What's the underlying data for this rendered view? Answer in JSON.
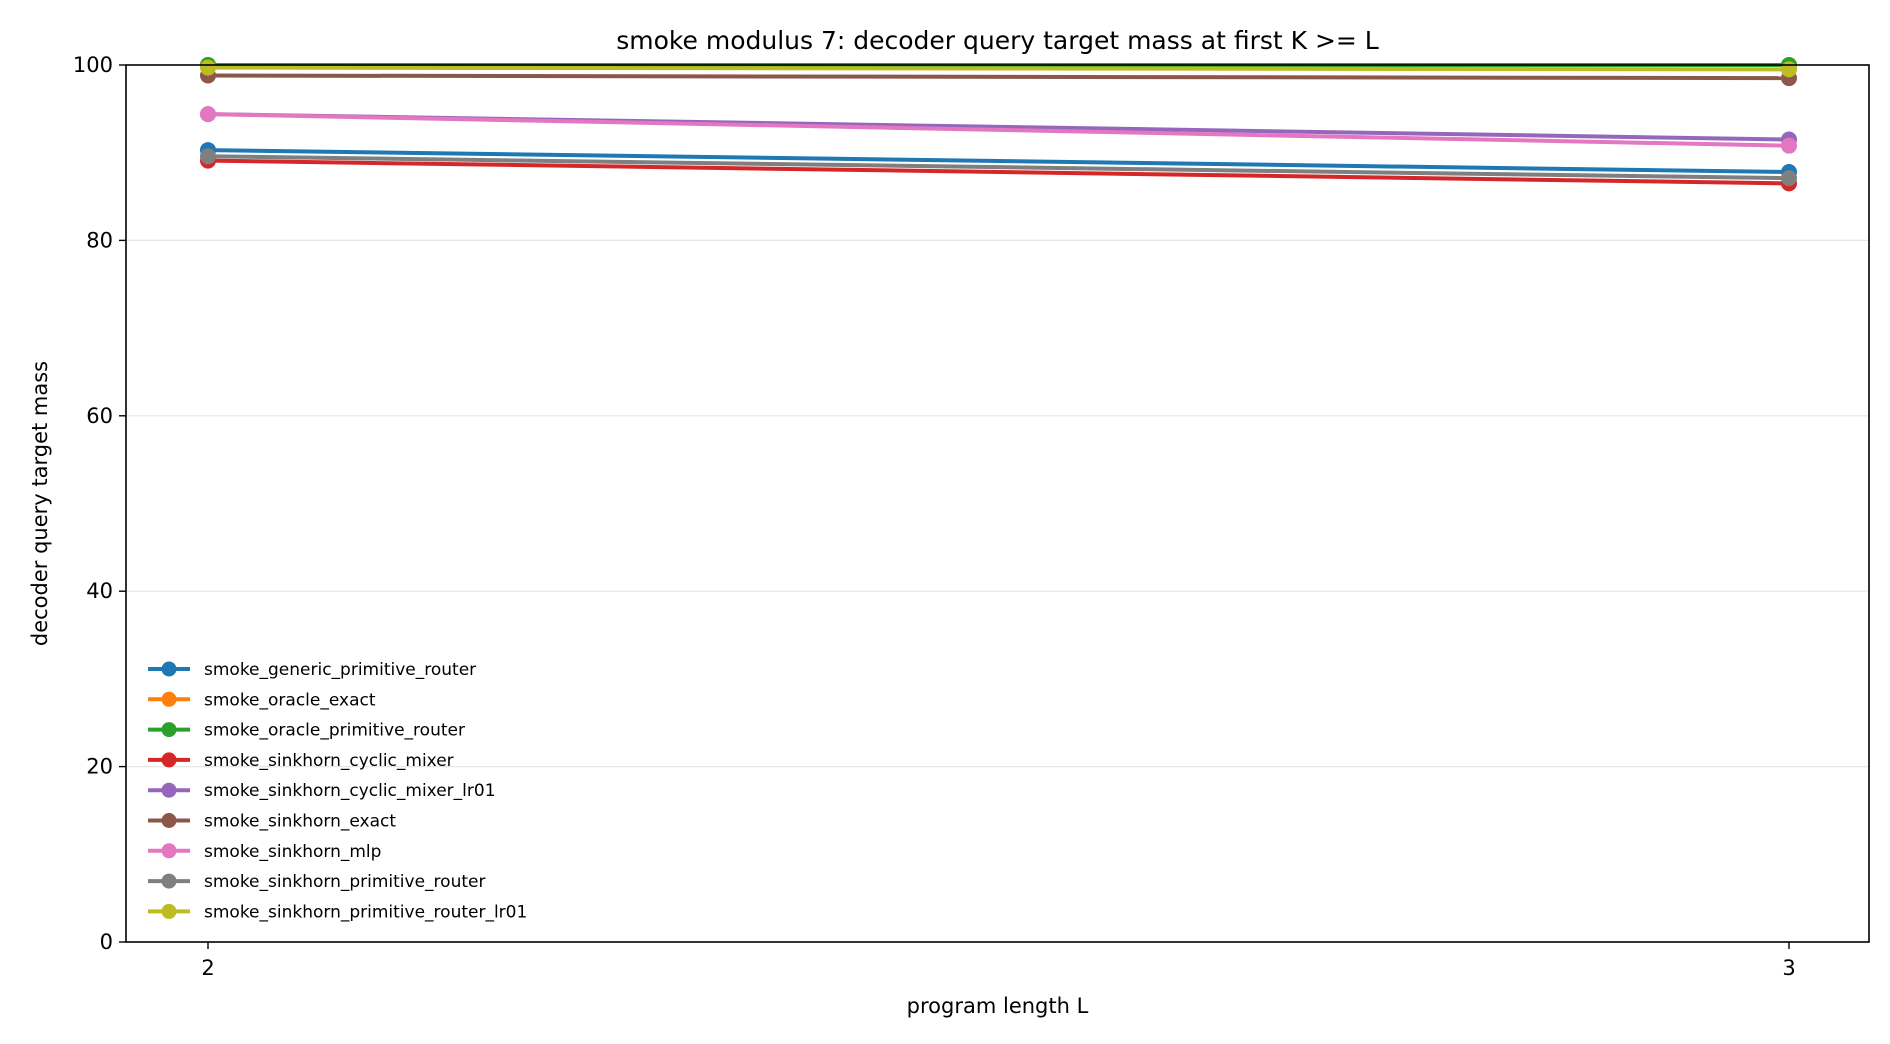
{
  "chart_data": {
    "type": "line",
    "title": "smoke modulus 7: decoder query target mass at first K >= L",
    "xlabel": "program length L",
    "ylabel": "decoder query target mass",
    "x": [
      2,
      3
    ],
    "xticks": [
      "2",
      "3"
    ],
    "ylim": [
      0,
      100
    ],
    "yticks": [
      "0",
      "20",
      "40",
      "60",
      "80",
      "100"
    ],
    "grid": "horizontal",
    "legend_position": "lower-left",
    "series": [
      {
        "name": "smoke_generic_primitive_router",
        "values": [
          90.3,
          87.8
        ],
        "color": "#1f77b4"
      },
      {
        "name": "smoke_oracle_exact",
        "values": [
          100.0,
          100.0
        ],
        "color": "#ff7f0e"
      },
      {
        "name": "smoke_oracle_primitive_router",
        "values": [
          100.0,
          100.0
        ],
        "color": "#2ca02c"
      },
      {
        "name": "smoke_sinkhorn_cyclic_mixer",
        "values": [
          89.1,
          86.5
        ],
        "color": "#d62728"
      },
      {
        "name": "smoke_sinkhorn_cyclic_mixer_lr01",
        "values": [
          94.4,
          91.5
        ],
        "color": "#9467bd"
      },
      {
        "name": "smoke_sinkhorn_exact",
        "values": [
          98.8,
          98.5
        ],
        "color": "#8c564b"
      },
      {
        "name": "smoke_sinkhorn_mlp",
        "values": [
          94.4,
          90.8
        ],
        "color": "#e377c2"
      },
      {
        "name": "smoke_sinkhorn_primitive_router",
        "values": [
          89.6,
          87.1
        ],
        "color": "#7f7f7f"
      },
      {
        "name": "smoke_sinkhorn_primitive_router_lr01",
        "values": [
          99.7,
          99.5
        ],
        "color": "#bcbd22"
      }
    ]
  }
}
